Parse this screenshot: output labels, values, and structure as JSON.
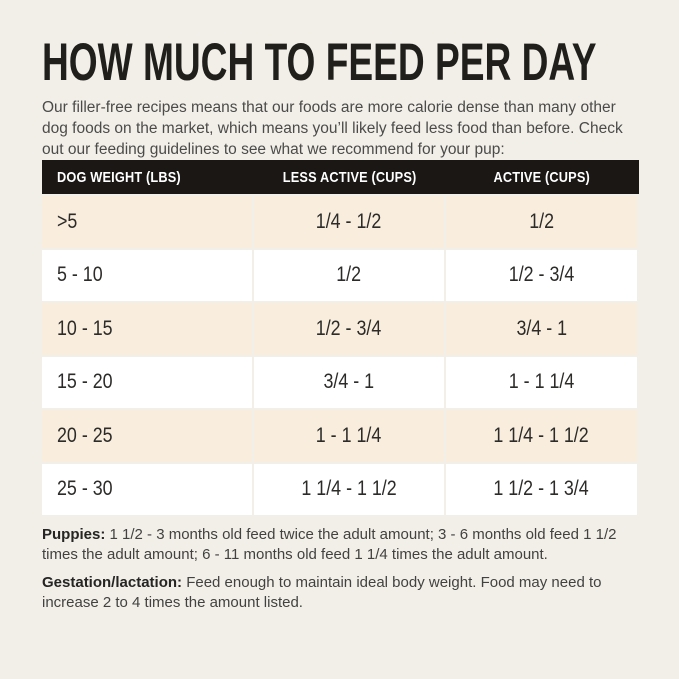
{
  "page": {
    "title": "HOW MUCH TO FEED PER DAY",
    "intro": "Our filler-free recipes means that our foods are more calorie dense than many other dog foods on the market, which means you’ll likely feed less food than before. Check out our feeding guidelines to see what we recommend for your pup:"
  },
  "table": {
    "headers": [
      "DOG WEIGHT (LBS)",
      "LESS ACTIVE (CUPS)",
      "ACTIVE (CUPS)"
    ],
    "rows": [
      [
        ">5",
        "1/4 - 1/2",
        "1/2"
      ],
      [
        "5 - 10",
        "1/2",
        "1/2 - 3/4"
      ],
      [
        "10 - 15",
        "1/2 - 3/4",
        "3/4 - 1"
      ],
      [
        "15 - 20",
        "3/4 - 1",
        "1 - 1 1/4"
      ],
      [
        "20 - 25",
        "1 - 1 1/4",
        "1 1/4 - 1 1/2"
      ],
      [
        "25 - 30",
        "1 1/4 - 1 1/2",
        "1 1/2 - 1 3/4"
      ]
    ]
  },
  "notes": [
    {
      "label": "Puppies:",
      "text": " 1 1/2 - 3 months old feed twice the adult amount; 3 - 6 months old feed 1 1/2 times the adult amount; 6 - 11 months old feed 1 1/4 times the adult amount."
    },
    {
      "label": "Gestation/lactation:",
      "text": " Feed enough to maintain ideal body weight. Food may need to increase 2 to 4 times the amount listed."
    }
  ],
  "colors": {
    "page_bg": "#f2efe9",
    "header_bg": "#1a1714",
    "header_text": "#ffffff",
    "row_alt_bg": "#f9eedd",
    "row_plain_bg": "#ffffff",
    "title_text": "#211f1c"
  }
}
